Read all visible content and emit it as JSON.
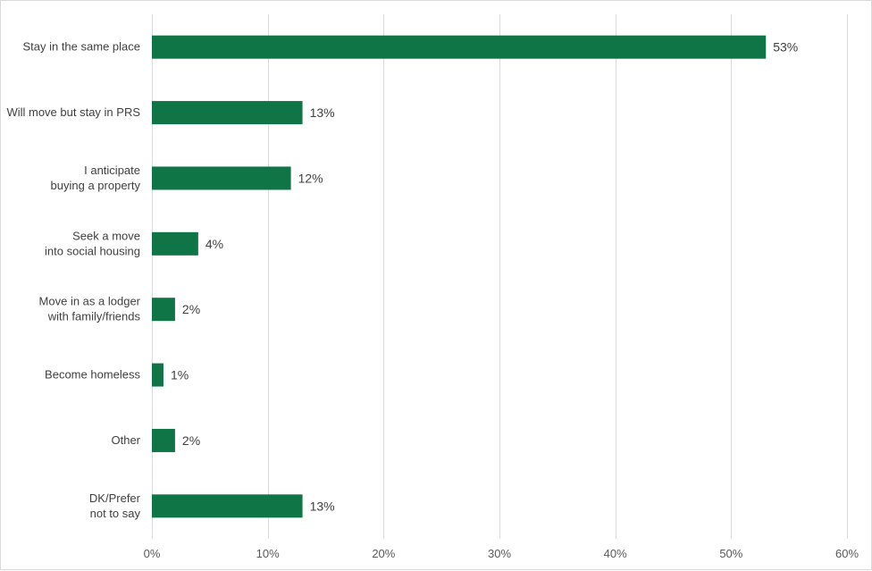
{
  "chart_data": {
    "type": "bar",
    "orientation": "horizontal",
    "title": "",
    "xlabel": "",
    "ylabel": "",
    "categories": [
      [
        "Stay in the same place"
      ],
      [
        "Will move but stay in PRS"
      ],
      [
        "I anticipate",
        "buying a property"
      ],
      [
        "Seek a move",
        "into social housing"
      ],
      [
        "Move in as a lodger",
        "with family/friends"
      ],
      [
        "Become homeless"
      ],
      [
        "Other"
      ],
      [
        "DK/Prefer",
        "not to say"
      ]
    ],
    "values": [
      53,
      13,
      12,
      4,
      2,
      1,
      2,
      13
    ],
    "value_labels": [
      "53%",
      "13%",
      "12%",
      "4%",
      "2%",
      "1%",
      "2%",
      "13%"
    ],
    "xlim": [
      0,
      60
    ],
    "x_ticks": [
      0,
      10,
      20,
      30,
      40,
      50,
      60
    ],
    "x_tick_labels": [
      "0%",
      "10%",
      "20%",
      "30%",
      "40%",
      "50%",
      "60%"
    ],
    "grid": "vertical",
    "legend": "none",
    "bar_color": "#107546"
  }
}
